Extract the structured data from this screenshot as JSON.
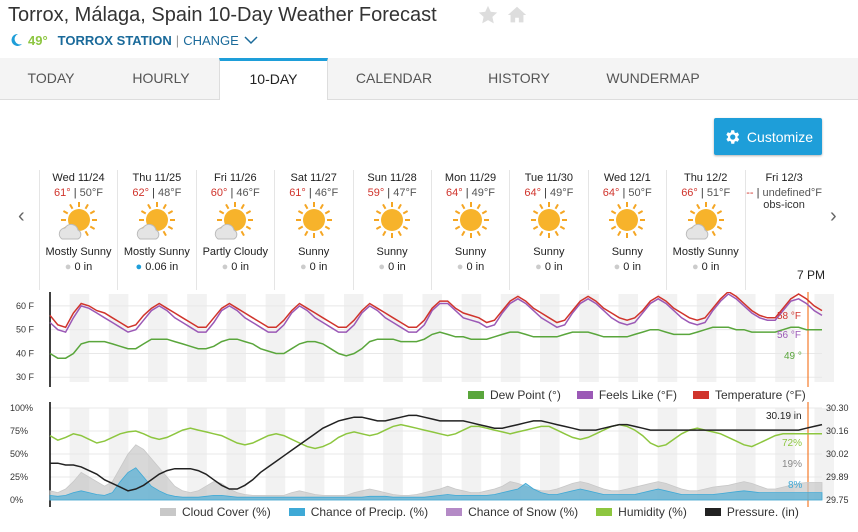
{
  "header": {
    "title": "Torrox, Málaga, Spain 10-Day Weather Forecast",
    "current_temp": "49°",
    "station": "TORROX STATION",
    "separator": "|",
    "change_label": "CHANGE"
  },
  "tabs": [
    "TODAY",
    "HOURLY",
    "10-DAY",
    "CALENDAR",
    "HISTORY",
    "WUNDERMAP"
  ],
  "active_tab": "10-DAY",
  "customize_label": "Customize",
  "days": [
    {
      "name": "Wed 11/24",
      "hi": "61°",
      "lo": "50°F",
      "cond": "Mostly Sunny",
      "precip": "0 in",
      "icon": "partly"
    },
    {
      "name": "Thu 11/25",
      "hi": "62°",
      "lo": "48°F",
      "cond": "Mostly Sunny",
      "precip": "0.06 in",
      "icon": "partly"
    },
    {
      "name": "Fri 11/26",
      "hi": "60°",
      "lo": "46°F",
      "cond": "Partly Cloudy",
      "precip": "0 in",
      "icon": "partly"
    },
    {
      "name": "Sat 11/27",
      "hi": "61°",
      "lo": "46°F",
      "cond": "Sunny",
      "precip": "0 in",
      "icon": "sun"
    },
    {
      "name": "Sun 11/28",
      "hi": "59°",
      "lo": "47°F",
      "cond": "Sunny",
      "precip": "0 in",
      "icon": "sun"
    },
    {
      "name": "Mon 11/29",
      "hi": "64°",
      "lo": "49°F",
      "cond": "Sunny",
      "precip": "0 in",
      "icon": "sun"
    },
    {
      "name": "Tue 11/30",
      "hi": "64°",
      "lo": "49°F",
      "cond": "Sunny",
      "precip": "0 in",
      "icon": "sun"
    },
    {
      "name": "Wed 12/1",
      "hi": "64°",
      "lo": "50°F",
      "cond": "Sunny",
      "precip": "0 in",
      "icon": "sun"
    },
    {
      "name": "Thu 12/2",
      "hi": "66°",
      "lo": "51°F",
      "cond": "Mostly Sunny",
      "precip": "0 in",
      "icon": "partly"
    },
    {
      "name": "Fri 12/3",
      "hi": "--",
      "lo": "undefined°F",
      "cond": "",
      "precip": "",
      "icon": "broken",
      "broken_alt": "obs-icon"
    }
  ],
  "time_label": "7 PM",
  "chart_data": [
    {
      "type": "line",
      "yticks": [
        "60 F",
        "50 F",
        "40 F",
        "30 F"
      ],
      "series": [
        {
          "name": "Temperature (°F)",
          "color": "#d0342c",
          "values": [
            56,
            52,
            51,
            57,
            61,
            60,
            58,
            57,
            55,
            53,
            51,
            52,
            56,
            59,
            61,
            59,
            57,
            55,
            53,
            51,
            51,
            55,
            59,
            61,
            59,
            57,
            55,
            53,
            51,
            51,
            54,
            58,
            61,
            59,
            57,
            55,
            53,
            51,
            51,
            54,
            58,
            61,
            59,
            57,
            55,
            53,
            51,
            51,
            54,
            59,
            62,
            62,
            59,
            57,
            56,
            55,
            53,
            54,
            58,
            62,
            64,
            62,
            59,
            57,
            55,
            53,
            54,
            58,
            62,
            64,
            62,
            59,
            57,
            55,
            54,
            55,
            58,
            62,
            64,
            62,
            59,
            57,
            55,
            54,
            55,
            59,
            63,
            66,
            64,
            61,
            58,
            56,
            55,
            55,
            59,
            63,
            65,
            63,
            60,
            58
          ]
        },
        {
          "name": "Feels Like (°F)",
          "color": "#9b59b6",
          "values": [
            53,
            50,
            49,
            55,
            60,
            59,
            57,
            55,
            53,
            51,
            49,
            50,
            54,
            58,
            60,
            58,
            55,
            53,
            51,
            49,
            49,
            53,
            58,
            60,
            58,
            55,
            53,
            51,
            49,
            49,
            52,
            57,
            60,
            58,
            55,
            53,
            51,
            49,
            49,
            52,
            57,
            60,
            58,
            55,
            53,
            51,
            49,
            49,
            52,
            58,
            61,
            61,
            58,
            55,
            54,
            53,
            51,
            52,
            57,
            61,
            63,
            61,
            58,
            55,
            53,
            51,
            52,
            57,
            61,
            63,
            61,
            58,
            55,
            53,
            52,
            53,
            57,
            61,
            63,
            61,
            58,
            55,
            53,
            52,
            53,
            58,
            62,
            65,
            63,
            60,
            57,
            55,
            54,
            54,
            58,
            62,
            63,
            61,
            58,
            56
          ]
        },
        {
          "name": "Dew Point (°)",
          "color": "#5aa63c",
          "values": [
            40,
            38,
            38,
            40,
            44,
            45,
            45,
            45,
            44,
            43,
            42,
            42,
            44,
            46,
            46,
            46,
            45,
            44,
            43,
            42,
            42,
            43,
            45,
            46,
            46,
            45,
            44,
            42,
            41,
            40,
            40,
            42,
            44,
            45,
            45,
            44,
            42,
            40,
            39,
            40,
            42,
            45,
            46,
            46,
            46,
            45,
            45,
            45,
            46,
            48,
            49,
            48,
            47,
            47,
            46,
            46,
            46,
            47,
            48,
            49,
            49,
            48,
            47,
            47,
            47,
            47,
            48,
            49,
            49,
            49,
            48,
            47,
            47,
            47,
            47,
            48,
            49,
            50,
            50,
            49,
            48,
            48,
            48,
            49,
            50,
            51,
            51,
            51,
            50,
            50,
            49,
            49,
            49,
            49,
            50,
            51,
            51,
            50,
            50,
            50
          ]
        }
      ],
      "annotations": [
        "58 °F",
        "56 °F",
        "49 °"
      ],
      "legend": [
        "Dew Point (°)",
        "Feels Like (°F)",
        "Temperature (°F)"
      ]
    },
    {
      "type": "area",
      "yticks_left": [
        "100%",
        "75%",
        "50%",
        "25%",
        "0%"
      ],
      "yticks_right": [
        "30.30",
        "30.16",
        "30.02",
        "29.89",
        "29.75"
      ],
      "series": [
        {
          "name": "Cloud Cover (%)",
          "color": "#c8c8c8",
          "values": [
            10,
            8,
            12,
            20,
            30,
            25,
            20,
            15,
            20,
            35,
            50,
            60,
            55,
            45,
            35,
            25,
            15,
            10,
            8,
            10,
            15,
            20,
            18,
            12,
            8,
            6,
            5,
            5,
            5,
            5,
            5,
            8,
            10,
            8,
            6,
            5,
            5,
            5,
            5,
            8,
            10,
            12,
            10,
            8,
            6,
            5,
            5,
            6,
            8,
            10,
            12,
            15,
            12,
            10,
            8,
            8,
            10,
            12,
            15,
            20,
            18,
            15,
            12,
            10,
            10,
            12,
            15,
            18,
            20,
            18,
            15,
            12,
            10,
            10,
            12,
            14,
            16,
            18,
            20,
            18,
            15,
            12,
            10,
            10,
            12,
            14,
            15,
            16,
            18,
            20,
            18,
            15,
            12,
            12,
            14,
            16,
            18,
            19,
            19,
            19
          ]
        },
        {
          "name": "Chance of Precip. (%)",
          "color": "#3ea9d6",
          "values": [
            5,
            4,
            5,
            8,
            10,
            8,
            6,
            5,
            8,
            20,
            30,
            35,
            25,
            15,
            10,
            6,
            4,
            3,
            3,
            3,
            4,
            5,
            5,
            4,
            3,
            3,
            3,
            3,
            3,
            3,
            3,
            3,
            3,
            3,
            3,
            3,
            3,
            3,
            3,
            3,
            3,
            4,
            4,
            4,
            3,
            3,
            3,
            3,
            3,
            4,
            5,
            6,
            5,
            5,
            5,
            5,
            5,
            6,
            8,
            10,
            12,
            18,
            12,
            8,
            6,
            6,
            8,
            10,
            12,
            10,
            8,
            6,
            6,
            6,
            6,
            6,
            8,
            10,
            12,
            10,
            8,
            6,
            6,
            6,
            6,
            6,
            7,
            8,
            9,
            10,
            9,
            8,
            8,
            8,
            8,
            8,
            8,
            8,
            8,
            8
          ]
        },
        {
          "name": "Chance of Snow (%)",
          "color": "#b48ac6",
          "values": []
        },
        {
          "name": "Humidity (%)",
          "color": "#8dc63f",
          "values": [
            70,
            65,
            68,
            72,
            70,
            66,
            62,
            64,
            68,
            72,
            74,
            75,
            72,
            68,
            66,
            68,
            72,
            76,
            78,
            76,
            74,
            72,
            70,
            66,
            62,
            60,
            62,
            66,
            70,
            72,
            70,
            66,
            62,
            58,
            56,
            58,
            62,
            68,
            72,
            74,
            72,
            70,
            72,
            76,
            80,
            82,
            80,
            78,
            76,
            74,
            72,
            70,
            72,
            76,
            80,
            80,
            78,
            76,
            74,
            72,
            74,
            76,
            78,
            80,
            80,
            76,
            72,
            68,
            66,
            68,
            72,
            76,
            80,
            82,
            80,
            76,
            70,
            62,
            58,
            60,
            66,
            72,
            76,
            78,
            76,
            74,
            72,
            68,
            64,
            60,
            58,
            62,
            66,
            70,
            72,
            72,
            72,
            72,
            72,
            72
          ]
        },
        {
          "name": "Pressure. (in)",
          "color": "#222",
          "values": [
            40,
            40,
            38,
            38,
            36,
            32,
            28,
            22,
            18,
            14,
            10,
            12,
            16,
            22,
            28,
            32,
            34,
            34,
            34,
            32,
            28,
            22,
            16,
            12,
            12,
            16,
            22,
            30,
            36,
            42,
            48,
            54,
            60,
            66,
            72,
            78,
            82,
            86,
            88,
            90,
            90,
            88,
            86,
            86,
            88,
            90,
            92,
            92,
            90,
            88,
            86,
            86,
            86,
            86,
            84,
            82,
            80,
            78,
            78,
            80,
            82,
            84,
            86,
            86,
            84,
            82,
            80,
            78,
            76,
            76,
            76,
            78,
            80,
            82,
            82,
            80,
            78,
            76,
            76,
            76,
            76,
            76,
            76,
            76,
            76,
            76,
            76,
            76,
            76,
            76,
            76,
            76,
            76,
            76,
            76,
            76,
            76,
            78,
            80,
            82
          ]
        }
      ],
      "annotations": [
        "30.19 in",
        "72%",
        "19%",
        "8%"
      ],
      "legend": [
        "Cloud Cover (%)",
        "Chance of Precip. (%)",
        "Chance of Snow (%)",
        "Humidity (%)",
        "Pressure. (in)"
      ]
    }
  ]
}
